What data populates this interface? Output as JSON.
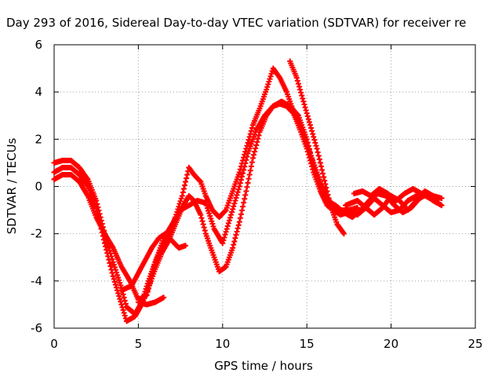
{
  "chart_data": {
    "type": "scatter",
    "title": "Day 293 of 2016, Sidereal Day-to-day VTEC variation (SDTVAR) for receiver re",
    "xlabel": "GPS time / hours",
    "ylabel": "SDTVAR / TECUs",
    "xlim": [
      0,
      25
    ],
    "ylim": [
      -6,
      6
    ],
    "xticks": [
      0,
      5,
      10,
      15,
      20,
      25
    ],
    "yticks": [
      -6,
      -4,
      -2,
      0,
      2,
      4,
      6
    ],
    "grid": true,
    "marker": "plus",
    "color": "#ff0000",
    "series": [
      {
        "x": [
          0,
          0.5,
          1,
          1.5,
          2,
          2.5,
          3,
          3.5,
          4,
          4.3,
          4.8,
          5.2,
          5.6,
          6,
          6.4,
          6.8,
          7.2,
          7.6,
          8,
          8.3,
          8.7,
          9,
          9.4,
          9.8,
          10.2,
          10.6,
          11,
          11.4,
          11.8,
          12.2,
          12.6,
          13,
          13.4,
          13.8,
          14.2,
          14.6,
          15,
          15.4,
          15.8,
          16.2,
          16.6,
          17,
          17.4
        ],
        "y": [
          1.0,
          1.1,
          1.1,
          0.8,
          0.3,
          -0.6,
          -2.0,
          -3.2,
          -4.3,
          -5.1,
          -5.4,
          -4.9,
          -4.0,
          -3.2,
          -2.6,
          -2.0,
          -1.3,
          -0.4,
          0.8,
          0.5,
          0.2,
          -0.4,
          -1.0,
          -1.3,
          -1.0,
          -0.2,
          0.6,
          1.6,
          2.6,
          3.3,
          4.1,
          5.0,
          4.6,
          4.0,
          3.2,
          2.6,
          1.8,
          1.0,
          0.2,
          -0.6,
          -1.0,
          -1.2,
          -1.1
        ]
      },
      {
        "x": [
          0,
          0.5,
          1,
          1.5,
          2,
          2.5,
          3,
          3.5,
          4,
          4.3,
          4.8,
          5.2,
          5.6,
          6,
          6.4,
          6.8,
          7.2,
          7.6,
          8,
          8.3,
          8.7,
          9,
          9.4,
          9.8,
          10.2,
          10.6,
          11,
          11.4,
          11.8,
          12.2,
          12.6,
          13,
          13.4,
          13.8,
          14.2,
          14.6,
          15,
          15.4,
          15.8,
          16.2,
          16.6
        ],
        "y": [
          0.6,
          0.8,
          0.8,
          0.5,
          0.0,
          -0.9,
          -2.4,
          -3.8,
          -5.0,
          -5.7,
          -5.5,
          -5.0,
          -4.3,
          -3.5,
          -2.8,
          -2.3,
          -1.6,
          -0.9,
          -0.4,
          -0.6,
          -1.2,
          -2.0,
          -2.8,
          -3.6,
          -3.4,
          -2.6,
          -1.5,
          -0.2,
          1.2,
          2.3,
          3.0,
          3.4,
          3.5,
          3.4,
          3.1,
          2.4,
          1.6,
          0.6,
          -0.2,
          -0.8,
          -1.0
        ]
      },
      {
        "x": [
          0,
          0.5,
          1,
          1.5,
          2,
          2.5,
          3,
          3.5,
          4,
          4.5,
          5,
          5.5,
          6,
          6.5,
          7,
          7.5,
          8,
          8.5,
          9,
          9.5,
          10,
          10.5,
          11,
          11.5,
          12,
          12.5,
          13,
          13.5,
          14,
          14.5,
          15,
          15.5,
          16,
          16.5,
          17,
          17.5,
          18
        ],
        "y": [
          0.3,
          0.5,
          0.5,
          0.2,
          -0.4,
          -1.3,
          -2.0,
          -2.6,
          -3.4,
          -4.0,
          -4.8,
          -4.6,
          -3.2,
          -2.2,
          -1.6,
          -1.0,
          -0.8,
          -0.6,
          -0.7,
          -1.8,
          -2.4,
          -1.2,
          0.0,
          1.4,
          2.4,
          3.0,
          3.4,
          3.6,
          3.4,
          3.0,
          2.0,
          0.6,
          -0.2,
          -0.8,
          -1.0,
          -1.0,
          -0.9
        ]
      },
      {
        "x": [
          14.0,
          14.4,
          14.8,
          15.2,
          15.6,
          16.0,
          16.4,
          16.8,
          17.2
        ],
        "y": [
          5.3,
          4.6,
          3.6,
          2.6,
          1.6,
          0.4,
          -0.8,
          -1.6,
          -2.0
        ]
      },
      {
        "x": [
          4.0,
          4.6,
          5.2,
          5.8,
          6.2,
          6.6,
          7.0,
          7.4,
          7.8
        ],
        "y": [
          -4.4,
          -4.2,
          -3.4,
          -2.6,
          -2.2,
          -2.0,
          -2.3,
          -2.6,
          -2.5
        ]
      },
      {
        "x": [
          5.0,
          5.5,
          6.0,
          6.5
        ],
        "y": [
          -4.9,
          -5.0,
          -4.9,
          -4.7
        ]
      },
      {
        "x": [
          17.5,
          18,
          18.5,
          19,
          19.5,
          20,
          20.5,
          21,
          21.5,
          22,
          22.5,
          23
        ],
        "y": [
          -1.0,
          -1.2,
          -0.9,
          -0.5,
          -0.8,
          -1.1,
          -1.0,
          -0.6,
          -0.4,
          -0.3,
          -0.6,
          -0.8
        ]
      },
      {
        "x": [
          17.3,
          18,
          18.5,
          19,
          19.5,
          20,
          20.5,
          21,
          21.5,
          22,
          22.5,
          23
        ],
        "y": [
          -0.8,
          -0.6,
          -0.9,
          -1.2,
          -0.9,
          -0.4,
          -0.6,
          -1.0,
          -0.6,
          -0.2,
          -0.4,
          -0.5
        ]
      },
      {
        "x": [
          17.8,
          18.3,
          18.8,
          19.3,
          19.8,
          20.3,
          20.8,
          21.3,
          21.8,
          22.3,
          22.8
        ],
        "y": [
          -0.3,
          -0.2,
          -0.4,
          -0.1,
          -0.3,
          -0.6,
          -0.3,
          -0.1,
          -0.3,
          -0.5,
          -0.7
        ]
      },
      {
        "x": [
          16.2,
          16.7,
          17.2,
          17.7,
          18.2,
          18.7,
          19.2,
          19.7,
          20.2,
          20.7,
          21.2,
          21.7,
          22.2,
          22.7
        ],
        "y": [
          -0.6,
          -0.8,
          -1.1,
          -1.3,
          -1.0,
          -0.6,
          -0.3,
          -0.4,
          -0.8,
          -1.1,
          -0.9,
          -0.5,
          -0.3,
          -0.6
        ]
      }
    ]
  }
}
